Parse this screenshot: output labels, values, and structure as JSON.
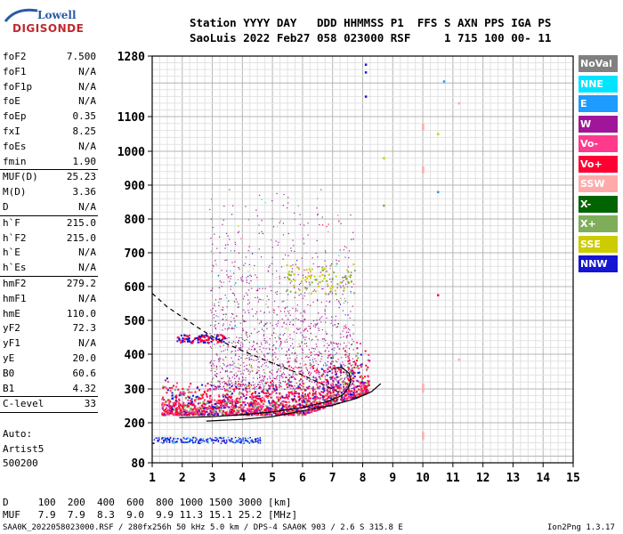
{
  "logo": {
    "line1": "Lowell",
    "line2": "DIGISONDE"
  },
  "header": {
    "line1": "Station YYYY DAY   DDD HHMMSS P1  FFS S AXN PPS IGA PS",
    "line2": "SaoLuis 2022 Feb27 058 023000 RSF     1 715 100 00- 11"
  },
  "params": {
    "group1": [
      {
        "k": "foF2",
        "v": "7.500"
      },
      {
        "k": "foF1",
        "v": "N/A"
      },
      {
        "k": "foF1p",
        "v": "N/A"
      },
      {
        "k": "foE",
        "v": "N/A"
      },
      {
        "k": "foEp",
        "v": "0.35"
      },
      {
        "k": "fxI",
        "v": "8.25"
      },
      {
        "k": "foEs",
        "v": "N/A"
      },
      {
        "k": "fmin",
        "v": "1.90"
      }
    ],
    "group2": [
      {
        "k": "MUF(D)",
        "v": "25.23"
      },
      {
        "k": "M(D)",
        "v": "3.36"
      },
      {
        "k": "D",
        "v": "N/A"
      }
    ],
    "group3": [
      {
        "k": "h`F",
        "v": "215.0"
      },
      {
        "k": "h`F2",
        "v": "215.0"
      },
      {
        "k": "h`E",
        "v": "N/A"
      },
      {
        "k": "h`Es",
        "v": "N/A"
      }
    ],
    "group4": [
      {
        "k": "hmF2",
        "v": "279.2"
      },
      {
        "k": "hmF1",
        "v": "N/A"
      },
      {
        "k": "hmE",
        "v": "110.0"
      },
      {
        "k": "yF2",
        "v": "72.3"
      },
      {
        "k": "yF1",
        "v": "N/A"
      },
      {
        "k": "yE",
        "v": "20.0"
      },
      {
        "k": "B0",
        "v": "60.6"
      },
      {
        "k": "B1",
        "v": "4.32"
      }
    ],
    "clevel": {
      "k": "C-level",
      "v": "33"
    }
  },
  "auto": {
    "line1": "Auto:",
    "line2": "Artist5",
    "line3": "500200"
  },
  "legend": [
    {
      "label": "NoVal",
      "color": "#808080"
    },
    {
      "label": "NNE",
      "color": "#00e5ff"
    },
    {
      "label": "E",
      "color": "#1e9bff"
    },
    {
      "label": "W",
      "color": "#a0169b"
    },
    {
      "label": "Vo-",
      "color": "#ff3a8c"
    },
    {
      "label": "Vo+",
      "color": "#ff0033"
    },
    {
      "label": "SSW",
      "color": "#ffaaaa"
    },
    {
      "label": "X-",
      "color": "#006400"
    },
    {
      "label": "X+",
      "color": "#7fae5a"
    },
    {
      "label": "SSE",
      "color": "#cccc00"
    },
    {
      "label": "NNW",
      "color": "#1414d2"
    }
  ],
  "muf_table": {
    "row1": "D     100  200  400  600  800 1000 1500 3000 [km]",
    "row2": "MUF   7.9  7.9  8.3  9.0  9.9 11.3 15.1 25.2 [MHz]"
  },
  "footer": {
    "left": "SAA0K_2022058023000.RSF / 280fx256h 50 kHz 5.0 km / DPS-4 SAA0K 903 / 2.6 S 315.8 E",
    "right": "Ion2Png 1.3.17"
  },
  "chart_data": {
    "type": "scatter",
    "xlim": [
      1,
      15
    ],
    "ylim": [
      80,
      1280
    ],
    "x_ticks": [
      1,
      2,
      3,
      4,
      5,
      6,
      7,
      8,
      9,
      10,
      11,
      12,
      13,
      14,
      15
    ],
    "y_ticks": [
      80,
      200,
      300,
      400,
      500,
      600,
      700,
      800,
      900,
      1000,
      1100,
      1280
    ],
    "grid": true,
    "legend_position": "right",
    "traces": [
      {
        "name": "o-trace",
        "style": "solid",
        "points": [
          [
            1.9,
            215
          ],
          [
            3,
            218
          ],
          [
            4,
            224
          ],
          [
            5,
            232
          ],
          [
            6,
            245
          ],
          [
            6.8,
            262
          ],
          [
            7.3,
            280
          ],
          [
            7.5,
            300
          ],
          [
            7.6,
            320
          ],
          [
            7.55,
            345
          ],
          [
            7.3,
            362
          ],
          [
            7.0,
            360
          ]
        ]
      },
      {
        "name": "x-trace",
        "style": "solid",
        "points": [
          [
            2.8,
            205
          ],
          [
            4,
            210
          ],
          [
            5,
            218
          ],
          [
            6,
            235
          ],
          [
            7,
            252
          ],
          [
            7.8,
            272
          ],
          [
            8.3,
            292
          ],
          [
            8.6,
            315
          ]
        ]
      },
      {
        "name": "profile",
        "style": "dashed",
        "points": [
          [
            1,
            580
          ],
          [
            1.5,
            540
          ],
          [
            2,
            510
          ],
          [
            2.5,
            480
          ],
          [
            3,
            452
          ],
          [
            3.5,
            430
          ],
          [
            4,
            410
          ],
          [
            4.5,
            392
          ],
          [
            5,
            375
          ],
          [
            5.5,
            358
          ],
          [
            6,
            340
          ],
          [
            6.5,
            320
          ],
          [
            7,
            300
          ],
          [
            7.3,
            285
          ]
        ]
      }
    ],
    "isolated_points": [
      {
        "x": 8.1,
        "y": 1255,
        "c": "#1414d2"
      },
      {
        "x": 8.1,
        "y": 1232,
        "c": "#1414d2"
      },
      {
        "x": 8.1,
        "y": 1160,
        "c": "#1414d2"
      },
      {
        "x": 10.7,
        "y": 1205,
        "c": "#1e9bff"
      },
      {
        "x": 11.2,
        "y": 1140,
        "c": "#ffaaaa"
      },
      {
        "x": 10.5,
        "y": 880,
        "c": "#1e9bff"
      },
      {
        "x": 10.5,
        "y": 575,
        "c": "#ff0033"
      },
      {
        "x": 8.7,
        "y": 980,
        "c": "#cccc00"
      },
      {
        "x": 8.7,
        "y": 840,
        "c": "#7fae5a"
      },
      {
        "x": 10.5,
        "y": 1050,
        "c": "#cccc00"
      },
      {
        "x": 11.2,
        "y": 385,
        "c": "#ffaaaa"
      }
    ]
  }
}
